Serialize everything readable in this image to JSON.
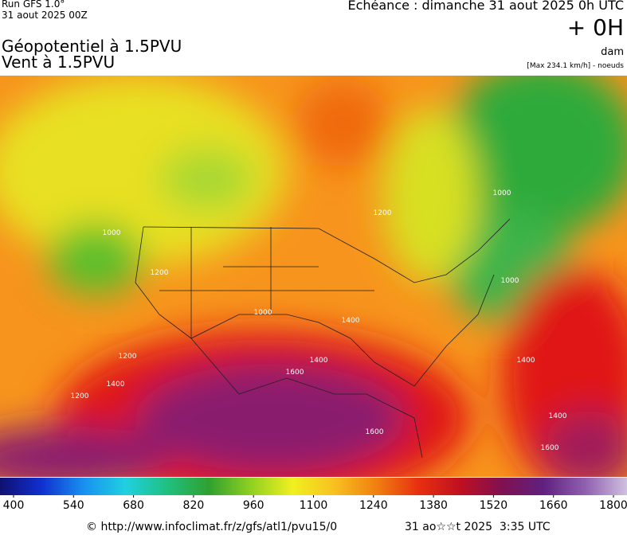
{
  "header": {
    "run": "Run GFS 1.0°",
    "run_date": "31 aout 2025 00Z",
    "echeance": "Echéance : dimanche 31 aout 2025 0h UTC",
    "offset": "+ 0H",
    "unit": "dam",
    "max_wind": "[Max 234.1 km/h] - noeuds",
    "title_line1": "Géopotentiel à 1.5PVU",
    "title_line2": "Vent à 1.5PVU"
  },
  "map_labels": [
    1000,
    1200,
    1000,
    1200,
    1000,
    1200,
    1000,
    1400,
    1600,
    1400,
    1400,
    1600,
    1200,
    1400,
    1600,
    1400
  ],
  "colorbar": {
    "lim": [
      400,
      1800
    ],
    "ticks": [
      400,
      540,
      680,
      820,
      960,
      1100,
      1240,
      1380,
      1520,
      1660,
      1800
    ]
  },
  "footer": {
    "source": "© http://www.infoclimat.fr/z/gfs/atl1/pvu15/0",
    "timestamp": "31 ao☆☆t 2025  3:35 UTC"
  }
}
